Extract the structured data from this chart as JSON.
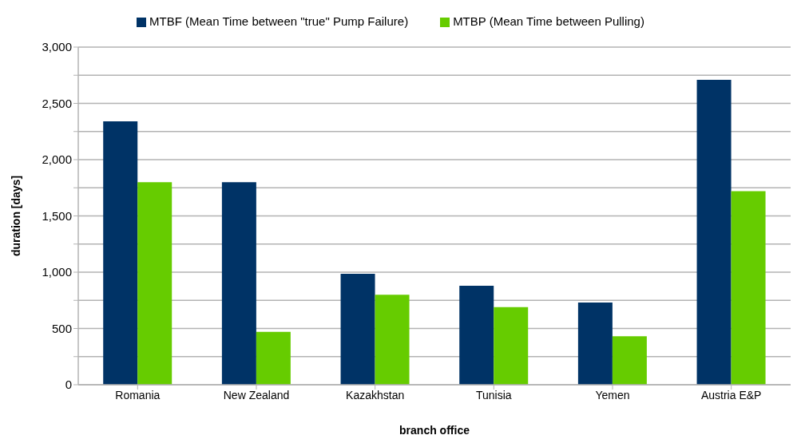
{
  "chart_data": {
    "type": "bar",
    "xlabel": "branch office",
    "ylabel": "duration [days]",
    "categories": [
      "Romania",
      "New Zealand",
      "Kazakhstan",
      "Tunisia",
      "Yemen",
      "Austria E&P"
    ],
    "series": [
      {
        "name": "MTBF (Mean Time between \"true\" Pump Failure)",
        "color": "#003366",
        "values": [
          2340,
          1800,
          985,
          880,
          730,
          2710
        ]
      },
      {
        "name": "MTBP (Mean Time between Pulling)",
        "color": "#66cc00",
        "values": [
          1800,
          470,
          800,
          690,
          430,
          1720
        ]
      }
    ],
    "ylim": [
      0,
      3000
    ],
    "yticks": [
      0,
      {
        "value": 250,
        "label": null
      },
      500,
      {
        "value": 750,
        "label": null
      },
      {
        "value": 1000,
        "label": "1,000"
      },
      {
        "value": 1250,
        "label": null
      },
      {
        "value": 1500,
        "label": "1,500"
      },
      {
        "value": 1750,
        "label": null
      },
      {
        "value": 2000,
        "label": "2,000"
      },
      {
        "value": 2250,
        "label": null
      },
      {
        "value": 2500,
        "label": "2,500"
      },
      {
        "value": 2750,
        "label": null
      },
      {
        "value": 3000,
        "label": "3,000"
      }
    ],
    "grid": "y",
    "legend": "top"
  }
}
